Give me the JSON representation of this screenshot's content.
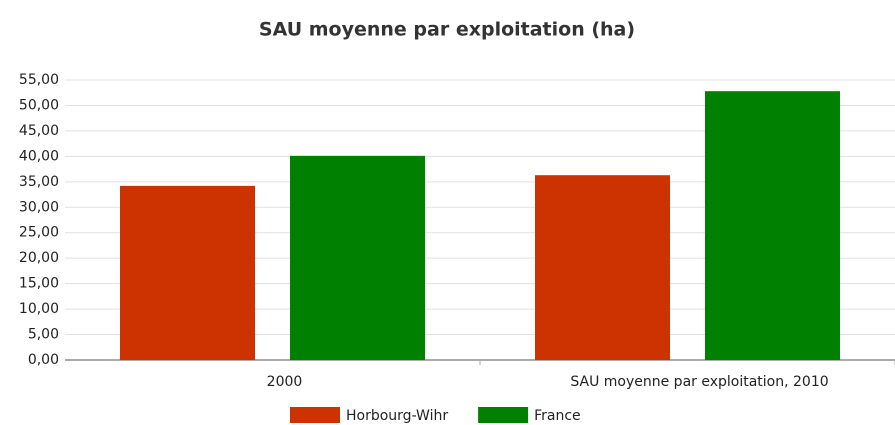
{
  "chart_data": {
    "type": "bar",
    "title": "SAU moyenne par exploitation (ha)",
    "categories": [
      "2000",
      "SAU moyenne par exploitation, 2010"
    ],
    "series": [
      {
        "name": "Horbourg-Wihr",
        "color": "#cc3300",
        "values": [
          34.2,
          36.3
        ]
      },
      {
        "name": "France",
        "color": "#008000",
        "values": [
          40.1,
          52.8
        ]
      }
    ],
    "ylim": [
      0,
      55
    ],
    "yticks": [
      {
        "value": 0,
        "label": "0,00"
      },
      {
        "value": 5,
        "label": "5,00"
      },
      {
        "value": 10,
        "label": "10,00"
      },
      {
        "value": 15,
        "label": "15,00"
      },
      {
        "value": 20,
        "label": "20,00"
      },
      {
        "value": 25,
        "label": "25,00"
      },
      {
        "value": 30,
        "label": "30,00"
      },
      {
        "value": 35,
        "label": "35,00"
      },
      {
        "value": 40,
        "label": "40,00"
      },
      {
        "value": 45,
        "label": "45,00"
      },
      {
        "value": 50,
        "label": "50,00"
      },
      {
        "value": 55,
        "label": "55,00"
      }
    ],
    "grid": true,
    "legend": "bottom"
  }
}
